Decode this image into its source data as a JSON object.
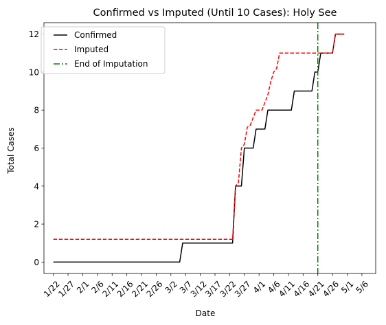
{
  "chart_data": {
    "type": "line",
    "title": "Confirmed vs Imputed (Until 10 Cases): Holy See",
    "xlabel": "Date",
    "ylabel": "Total Cases",
    "x_ticks": [
      "1/22",
      "1/27",
      "2/1",
      "2/6",
      "2/11",
      "2/16",
      "2/21",
      "2/26",
      "3/2",
      "3/7",
      "3/12",
      "3/17",
      "3/22",
      "3/27",
      "4/1",
      "4/6",
      "4/11",
      "4/16",
      "4/21",
      "4/26",
      "5/1",
      "5/6"
    ],
    "y_ticks": [
      0,
      2,
      4,
      6,
      8,
      10,
      12
    ],
    "xlim_days": [
      -3.2,
      109.7
    ],
    "ylim": [
      -0.6,
      12.6
    ],
    "grid": false,
    "legend_position": "top-left",
    "series": [
      {
        "name": "Confirmed",
        "color": "#000000",
        "style": "solid",
        "points": [
          {
            "x": "1/22",
            "y": 0
          },
          {
            "x": "3/5",
            "y": 0
          },
          {
            "x": "3/6",
            "y": 1
          },
          {
            "x": "3/23",
            "y": 1
          },
          {
            "x": "3/24",
            "y": 4
          },
          {
            "x": "3/26",
            "y": 4
          },
          {
            "x": "3/27",
            "y": 6
          },
          {
            "x": "3/30",
            "y": 6
          },
          {
            "x": "3/31",
            "y": 7
          },
          {
            "x": "4/3",
            "y": 7
          },
          {
            "x": "4/4",
            "y": 8
          },
          {
            "x": "4/12",
            "y": 8
          },
          {
            "x": "4/13",
            "y": 9
          },
          {
            "x": "4/19",
            "y": 9
          },
          {
            "x": "4/20",
            "y": 10
          },
          {
            "x": "4/21",
            "y": 10
          },
          {
            "x": "4/22",
            "y": 11
          },
          {
            "x": "4/26",
            "y": 11
          },
          {
            "x": "4/27",
            "y": 12
          },
          {
            "x": "4/30",
            "y": 12
          }
        ]
      },
      {
        "name": "Imputed",
        "color": "#ff0000",
        "style": "dashed",
        "points": [
          {
            "x": "1/22",
            "y": 1.2
          },
          {
            "x": "3/23",
            "y": 1.2
          },
          {
            "x": "3/24",
            "y": 4
          },
          {
            "x": "3/25",
            "y": 4.2
          },
          {
            "x": "3/26",
            "y": 6
          },
          {
            "x": "3/27",
            "y": 6.2
          },
          {
            "x": "3/28",
            "y": 7.1
          },
          {
            "x": "3/29",
            "y": 7.2
          },
          {
            "x": "3/30",
            "y": 7.6
          },
          {
            "x": "3/31",
            "y": 8
          },
          {
            "x": "4/2",
            "y": 8
          },
          {
            "x": "4/3",
            "y": 8.4
          },
          {
            "x": "4/4",
            "y": 8.8
          },
          {
            "x": "4/5",
            "y": 9.5
          },
          {
            "x": "4/6",
            "y": 10
          },
          {
            "x": "4/7",
            "y": 10.2
          },
          {
            "x": "4/8",
            "y": 11
          },
          {
            "x": "4/22",
            "y": 11
          },
          {
            "x": "4/26",
            "y": 11
          },
          {
            "x": "4/27",
            "y": 12
          },
          {
            "x": "4/30",
            "y": 12
          }
        ]
      },
      {
        "name": "End of Imputation",
        "color": "#008000",
        "style": "dashdot",
        "vertical_line_x": "4/21"
      }
    ]
  }
}
